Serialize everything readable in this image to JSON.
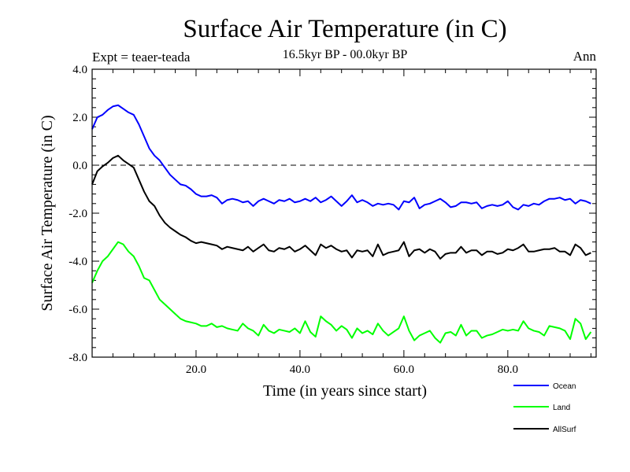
{
  "chart_data": {
    "type": "line",
    "title": "Surface Air Temperature (in C)",
    "subtitle": "16.5kyr BP - 00.0kyr BP",
    "left_note": "Expt = teaer-teada",
    "right_note": "Ann",
    "xlabel": "Time (in years since start)",
    "ylabel": "Surface Air Temperature (in C)",
    "xlim": [
      0,
      97
    ],
    "ylim": [
      -8.0,
      4.0
    ],
    "x_ticks": [
      20,
      40,
      60,
      80
    ],
    "x_tick_labels": [
      "20.0",
      "40.0",
      "60.0",
      "80.0"
    ],
    "y_ticks": [
      -8,
      -6,
      -4,
      -2,
      0,
      2,
      4
    ],
    "y_tick_labels": [
      "-8.0",
      "-6.0",
      "-4.0",
      "-2.0",
      "0.0",
      "2.0",
      "4.0"
    ],
    "reference_line": 0.0,
    "x_start": 0,
    "x_step": 1,
    "series": [
      {
        "name": "Ocean",
        "color": "#0000ff",
        "values": [
          1.5,
          2.0,
          2.1,
          2.3,
          2.45,
          2.5,
          2.35,
          2.2,
          2.1,
          1.7,
          1.2,
          0.7,
          0.4,
          0.2,
          -0.1,
          -0.4,
          -0.6,
          -0.8,
          -0.85,
          -1.0,
          -1.2,
          -1.3,
          -1.3,
          -1.25,
          -1.35,
          -1.6,
          -1.45,
          -1.4,
          -1.45,
          -1.55,
          -1.5,
          -1.7,
          -1.5,
          -1.4,
          -1.5,
          -1.6,
          -1.45,
          -1.5,
          -1.4,
          -1.55,
          -1.5,
          -1.4,
          -1.5,
          -1.35,
          -1.55,
          -1.45,
          -1.3,
          -1.5,
          -1.7,
          -1.5,
          -1.25,
          -1.55,
          -1.45,
          -1.55,
          -1.7,
          -1.6,
          -1.65,
          -1.6,
          -1.65,
          -1.85,
          -1.5,
          -1.55,
          -1.35,
          -1.8,
          -1.65,
          -1.6,
          -1.5,
          -1.4,
          -1.55,
          -1.75,
          -1.7,
          -1.55,
          -1.55,
          -1.6,
          -1.55,
          -1.8,
          -1.7,
          -1.65,
          -1.7,
          -1.65,
          -1.5,
          -1.75,
          -1.85,
          -1.65,
          -1.7,
          -1.6,
          -1.65,
          -1.5,
          -1.4,
          -1.4,
          -1.35,
          -1.45,
          -1.4,
          -1.6,
          -1.45,
          -1.5,
          -1.6
        ]
      },
      {
        "name": "Land",
        "color": "#00ff00",
        "values": [
          -4.9,
          -4.4,
          -4.0,
          -3.8,
          -3.5,
          -3.2,
          -3.3,
          -3.6,
          -3.8,
          -4.2,
          -4.7,
          -4.8,
          -5.2,
          -5.6,
          -5.8,
          -6.0,
          -6.2,
          -6.4,
          -6.5,
          -6.55,
          -6.6,
          -6.7,
          -6.7,
          -6.6,
          -6.75,
          -6.7,
          -6.8,
          -6.85,
          -6.9,
          -6.6,
          -6.8,
          -6.9,
          -7.1,
          -6.65,
          -6.9,
          -7.0,
          -6.85,
          -6.9,
          -6.95,
          -6.8,
          -7.0,
          -6.5,
          -6.95,
          -7.15,
          -6.3,
          -6.5,
          -6.65,
          -6.9,
          -6.7,
          -6.85,
          -7.2,
          -6.8,
          -7.0,
          -6.9,
          -7.05,
          -6.6,
          -6.9,
          -7.1,
          -6.95,
          -6.8,
          -6.3,
          -6.9,
          -7.3,
          -7.1,
          -7.0,
          -6.9,
          -7.2,
          -7.4,
          -7.0,
          -6.95,
          -7.1,
          -6.65,
          -7.1,
          -6.9,
          -6.9,
          -7.2,
          -7.1,
          -7.05,
          -6.95,
          -6.85,
          -6.9,
          -6.85,
          -6.9,
          -6.5,
          -6.8,
          -6.9,
          -6.95,
          -7.1,
          -6.7,
          -6.75,
          -6.8,
          -6.9,
          -7.25,
          -6.4,
          -6.6,
          -7.25,
          -6.95
        ]
      },
      {
        "name": "AllSurf",
        "color": "#000000",
        "values": [
          -0.8,
          -0.25,
          -0.05,
          0.1,
          0.3,
          0.4,
          0.2,
          0.05,
          -0.1,
          -0.6,
          -1.1,
          -1.5,
          -1.7,
          -2.1,
          -2.4,
          -2.6,
          -2.75,
          -2.9,
          -3.0,
          -3.15,
          -3.25,
          -3.2,
          -3.25,
          -3.3,
          -3.35,
          -3.5,
          -3.4,
          -3.45,
          -3.5,
          -3.55,
          -3.4,
          -3.6,
          -3.45,
          -3.3,
          -3.55,
          -3.6,
          -3.45,
          -3.5,
          -3.4,
          -3.6,
          -3.5,
          -3.35,
          -3.55,
          -3.75,
          -3.3,
          -3.45,
          -3.35,
          -3.5,
          -3.6,
          -3.55,
          -3.85,
          -3.55,
          -3.6,
          -3.55,
          -3.8,
          -3.3,
          -3.75,
          -3.65,
          -3.6,
          -3.55,
          -3.2,
          -3.8,
          -3.55,
          -3.5,
          -3.65,
          -3.5,
          -3.6,
          -3.9,
          -3.7,
          -3.65,
          -3.65,
          -3.4,
          -3.65,
          -3.55,
          -3.55,
          -3.75,
          -3.6,
          -3.6,
          -3.7,
          -3.65,
          -3.5,
          -3.55,
          -3.45,
          -3.3,
          -3.6,
          -3.6,
          -3.55,
          -3.5,
          -3.5,
          -3.45,
          -3.6,
          -3.6,
          -3.75,
          -3.3,
          -3.45,
          -3.75,
          -3.65
        ]
      }
    ],
    "legend_position": "bottom-right"
  }
}
